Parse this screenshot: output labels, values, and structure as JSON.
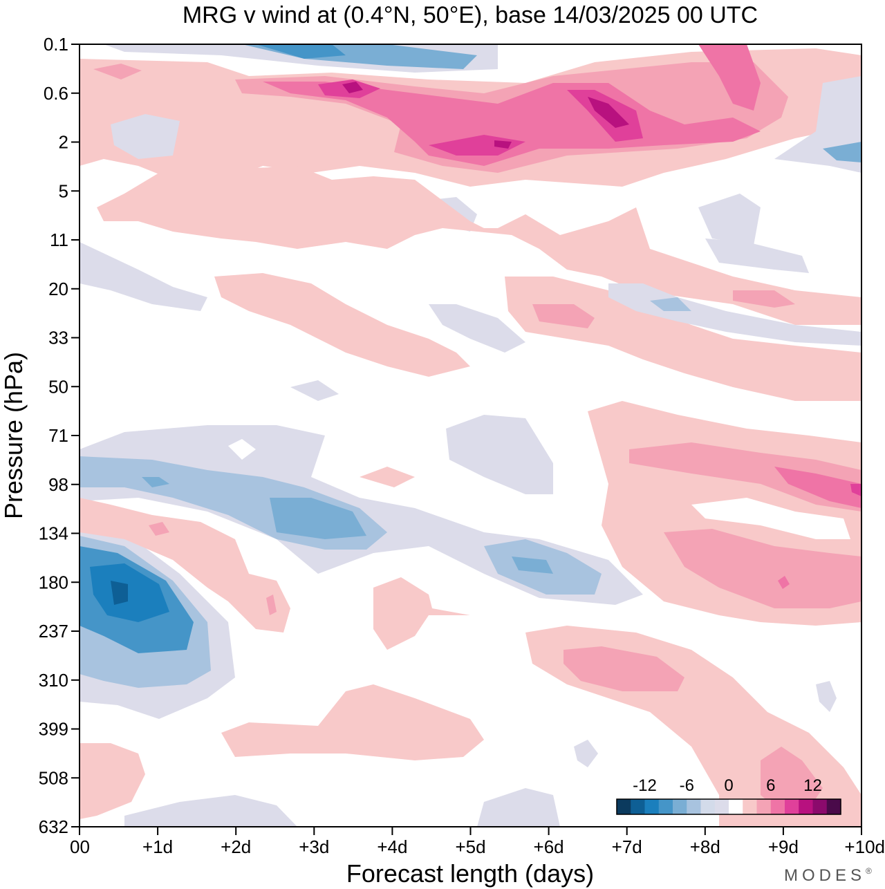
{
  "chart_data": {
    "type": "heatmap",
    "title": "MRG v wind at (0.4°N, 50°E),  base 14/03/2025  00 UTC",
    "xlabel": "Forecast length (days)",
    "ylabel": "Pressure (hPa)",
    "x_ticks": [
      "00",
      "+1d",
      "+2d",
      "+3d",
      "+4d",
      "+5d",
      "+6d",
      "+7d",
      "+8d",
      "+9d",
      "+10d"
    ],
    "x_range": [
      0,
      10
    ],
    "y_ticks": [
      "0.1",
      "0.6",
      "2",
      "5",
      "11",
      "20",
      "33",
      "50",
      "71",
      "98",
      "134",
      "180",
      "237",
      "310",
      "399",
      "508",
      "632"
    ],
    "y_scale": "pressure levels, top = 0.1 hPa, bottom = 632 hPa",
    "colorbar": {
      "labels": [
        "-12",
        "-6",
        "0",
        "6",
        "12"
      ],
      "label_positions": [
        -12,
        -6,
        0,
        6,
        12
      ],
      "levels": [
        -16,
        -14,
        -12,
        -10,
        -8,
        -6,
        -4,
        -2,
        2,
        4,
        6,
        8,
        10,
        12,
        14,
        16
      ],
      "colors": [
        "#0b3a5e",
        "#0e5f95",
        "#1b7fbd",
        "#4595c8",
        "#7aaed4",
        "#a8c3df",
        "#d3dbea",
        "#dcdcea",
        "#ffffff",
        "#f8c9c9",
        "#f4a3b5",
        "#ef74a6",
        "#e0409a",
        "#b8117f",
        "#8b0a6c",
        "#4a0a4a"
      ],
      "position": "bottom-right inside plot"
    },
    "features": [
      {
        "name": "negative max near 180 hPa",
        "x_day": 0.5,
        "level_hPa": 180,
        "value": -14
      },
      {
        "name": "negative band near 98-134 hPa",
        "x_day": 3.3,
        "level_hPa": 134,
        "value": -8
      },
      {
        "name": "negative patch near 180 hPa",
        "x_day": 5.8,
        "level_hPa": 180,
        "value": -6
      },
      {
        "name": "negative upper band",
        "x_day": 3.0,
        "level_hPa": 0.1,
        "value": -10
      },
      {
        "name": "positive upper band",
        "x_day": 5.5,
        "level_hPa": 2,
        "value": 12
      },
      {
        "name": "positive upper max",
        "x_day": 3.5,
        "level_hPa": 0.6,
        "value": 12
      },
      {
        "name": "positive upper max",
        "x_day": 6.8,
        "level_hPa": 0.6,
        "value": 12
      },
      {
        "name": "positive lower stratosphere",
        "x_day": 9.5,
        "level_hPa": 98,
        "value": 8
      },
      {
        "name": "positive patch near 237 hPa",
        "x_day": 7.5,
        "level_hPa": 237,
        "value": 4
      },
      {
        "name": "positive near surface",
        "x_day": 9.0,
        "level_hPa": 508,
        "value": 4
      }
    ],
    "grid": false,
    "legend": "bottom-right"
  },
  "brand": "MODES",
  "brand_mark": "®"
}
